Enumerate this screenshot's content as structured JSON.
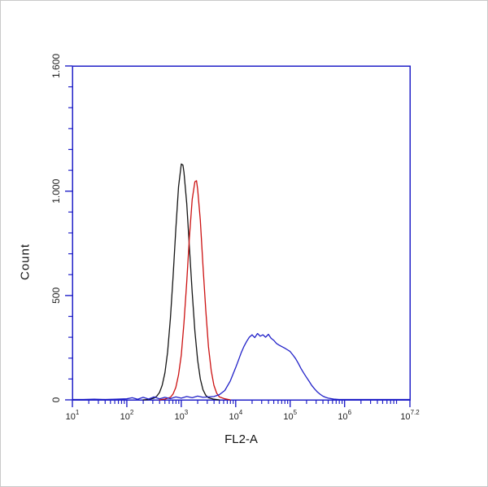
{
  "chart_data": {
    "type": "line",
    "title": "",
    "xlabel": "FL2-A",
    "ylabel": "Count",
    "x_scale": "log10",
    "xlim": [
      1,
      7.2
    ],
    "ylim": [
      0,
      1600
    ],
    "grid": false,
    "legend": "none",
    "colors": {
      "axis": "#2121c8",
      "tick_text": "#222222"
    },
    "x_ticks": [
      {
        "value": 1,
        "base": "10",
        "exp": "1"
      },
      {
        "value": 2,
        "base": "10",
        "exp": "2"
      },
      {
        "value": 3,
        "base": "10",
        "exp": "3"
      },
      {
        "value": 4,
        "base": "10",
        "exp": "4"
      },
      {
        "value": 5,
        "base": "10",
        "exp": "5"
      },
      {
        "value": 6,
        "base": "10",
        "exp": "6"
      },
      {
        "value": 7.2,
        "base": "10",
        "exp": "7.2"
      }
    ],
    "y_ticks": [
      {
        "value": 0,
        "label": "0"
      },
      {
        "value": 500,
        "label": "500"
      },
      {
        "value": 1000,
        "label": "1.000"
      },
      {
        "value": 1600,
        "label": "1.600"
      }
    ],
    "y_minor_step": 100,
    "series": [
      {
        "name": "black-curve",
        "color": "#151515",
        "points": [
          [
            2.3,
            0
          ],
          [
            2.4,
            2
          ],
          [
            2.5,
            8
          ],
          [
            2.55,
            18
          ],
          [
            2.6,
            35
          ],
          [
            2.65,
            70
          ],
          [
            2.7,
            130
          ],
          [
            2.75,
            230
          ],
          [
            2.8,
            390
          ],
          [
            2.85,
            590
          ],
          [
            2.9,
            820
          ],
          [
            2.95,
            1020
          ],
          [
            3.0,
            1130
          ],
          [
            3.03,
            1125
          ],
          [
            3.05,
            1090
          ],
          [
            3.1,
            940
          ],
          [
            3.15,
            730
          ],
          [
            3.2,
            515
          ],
          [
            3.25,
            330
          ],
          [
            3.3,
            190
          ],
          [
            3.35,
            100
          ],
          [
            3.4,
            48
          ],
          [
            3.45,
            22
          ],
          [
            3.5,
            10
          ],
          [
            3.6,
            3
          ],
          [
            3.7,
            0
          ]
        ]
      },
      {
        "name": "red-curve",
        "color": "#cc1111",
        "points": [
          [
            2.6,
            0
          ],
          [
            2.7,
            4
          ],
          [
            2.8,
            12
          ],
          [
            2.85,
            28
          ],
          [
            2.9,
            60
          ],
          [
            2.95,
            120
          ],
          [
            3.0,
            215
          ],
          [
            3.05,
            370
          ],
          [
            3.1,
            565
          ],
          [
            3.15,
            780
          ],
          [
            3.2,
            960
          ],
          [
            3.25,
            1045
          ],
          [
            3.28,
            1050
          ],
          [
            3.3,
            1010
          ],
          [
            3.35,
            860
          ],
          [
            3.4,
            640
          ],
          [
            3.45,
            430
          ],
          [
            3.5,
            255
          ],
          [
            3.55,
            140
          ],
          [
            3.6,
            70
          ],
          [
            3.65,
            32
          ],
          [
            3.7,
            14
          ],
          [
            3.8,
            5
          ],
          [
            3.9,
            0
          ]
        ]
      },
      {
        "name": "blue-curve",
        "color": "#2121c8",
        "points": [
          [
            1.0,
            2
          ],
          [
            1.2,
            2
          ],
          [
            1.4,
            3
          ],
          [
            1.6,
            2
          ],
          [
            1.8,
            3
          ],
          [
            2.0,
            5
          ],
          [
            2.1,
            10
          ],
          [
            2.2,
            3
          ],
          [
            2.3,
            12
          ],
          [
            2.4,
            4
          ],
          [
            2.5,
            14
          ],
          [
            2.6,
            5
          ],
          [
            2.7,
            12
          ],
          [
            2.8,
            6
          ],
          [
            2.9,
            14
          ],
          [
            3.0,
            8
          ],
          [
            3.1,
            16
          ],
          [
            3.2,
            10
          ],
          [
            3.3,
            18
          ],
          [
            3.4,
            12
          ],
          [
            3.5,
            14
          ],
          [
            3.6,
            16
          ],
          [
            3.7,
            25
          ],
          [
            3.8,
            45
          ],
          [
            3.9,
            90
          ],
          [
            4.0,
            155
          ],
          [
            4.05,
            190
          ],
          [
            4.1,
            225
          ],
          [
            4.15,
            255
          ],
          [
            4.2,
            280
          ],
          [
            4.25,
            300
          ],
          [
            4.3,
            312
          ],
          [
            4.35,
            298
          ],
          [
            4.4,
            318
          ],
          [
            4.45,
            305
          ],
          [
            4.5,
            312
          ],
          [
            4.55,
            300
          ],
          [
            4.6,
            314
          ],
          [
            4.65,
            295
          ],
          [
            4.7,
            285
          ],
          [
            4.75,
            270
          ],
          [
            4.8,
            262
          ],
          [
            4.85,
            255
          ],
          [
            4.9,
            248
          ],
          [
            4.95,
            240
          ],
          [
            5.0,
            232
          ],
          [
            5.05,
            215
          ],
          [
            5.1,
            198
          ],
          [
            5.15,
            175
          ],
          [
            5.2,
            150
          ],
          [
            5.25,
            128
          ],
          [
            5.3,
            108
          ],
          [
            5.35,
            88
          ],
          [
            5.4,
            68
          ],
          [
            5.45,
            52
          ],
          [
            5.5,
            38
          ],
          [
            5.55,
            27
          ],
          [
            5.6,
            18
          ],
          [
            5.65,
            12
          ],
          [
            5.7,
            8
          ],
          [
            5.8,
            4
          ],
          [
            5.9,
            2
          ],
          [
            6.0,
            2
          ],
          [
            6.2,
            2
          ],
          [
            6.4,
            2
          ],
          [
            6.6,
            2
          ],
          [
            6.8,
            2
          ],
          [
            7.0,
            2
          ],
          [
            7.2,
            2
          ]
        ]
      }
    ]
  }
}
